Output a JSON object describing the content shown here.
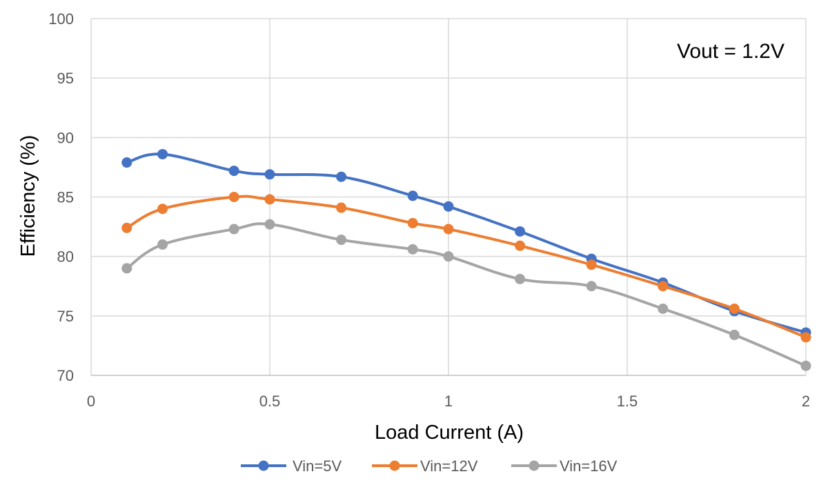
{
  "chart_data": {
    "type": "line",
    "title": "",
    "xlabel": "Load Current (A)",
    "ylabel": "Efficiency (%)",
    "xlim": [
      0,
      2
    ],
    "ylim": [
      70,
      100
    ],
    "x_ticks": [
      "0",
      "0.5",
      "1",
      "1.5",
      "2"
    ],
    "y_ticks": [
      "70",
      "75",
      "80",
      "85",
      "90",
      "95",
      "100"
    ],
    "grid": true,
    "legend_position": "bottom",
    "annotation": "Vout = 1.2V",
    "x": [
      0.1,
      0.2,
      0.4,
      0.5,
      0.7,
      0.9,
      1.0,
      1.2,
      1.4,
      1.6,
      1.8,
      2.0
    ],
    "series": [
      {
        "name": "Vin=5V",
        "color": "#4472c4",
        "values": [
          87.9,
          88.6,
          87.2,
          86.9,
          86.7,
          85.1,
          84.2,
          82.1,
          79.8,
          77.8,
          75.4,
          73.6
        ]
      },
      {
        "name": "Vin=12V",
        "color": "#ed7d31",
        "values": [
          82.4,
          84.0,
          85.0,
          84.8,
          84.1,
          82.8,
          82.3,
          80.9,
          79.3,
          77.5,
          75.6,
          73.2
        ]
      },
      {
        "name": "Vin=16V",
        "color": "#a5a5a5",
        "values": [
          79.0,
          81.0,
          82.3,
          82.7,
          81.4,
          80.6,
          80.0,
          78.1,
          77.5,
          75.6,
          73.4,
          70.8
        ]
      }
    ]
  }
}
